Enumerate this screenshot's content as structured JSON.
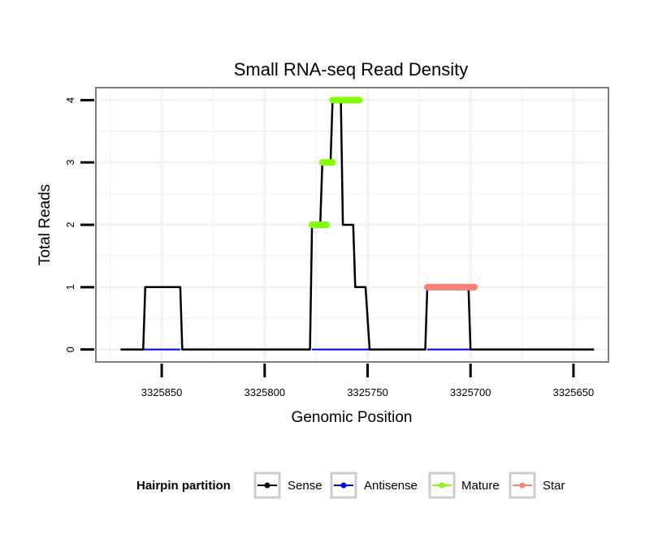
{
  "chart_data": {
    "type": "line",
    "title": "Small RNA-seq Read Density",
    "xlabel": "Genomic Position",
    "ylabel": "Total Reads",
    "x_reversed": true,
    "xlim": [
      3325882,
      3325633
    ],
    "ylim": [
      -0.2,
      4.2
    ],
    "x_ticks": [
      3325850,
      3325800,
      3325750,
      3325700,
      3325650
    ],
    "x_tick_labels": [
      "3325850",
      "3325800",
      "3325750",
      "3325700",
      "3325650"
    ],
    "y_ticks": [
      0,
      1,
      2,
      3,
      4
    ],
    "y_tick_labels": [
      "0",
      "1",
      "2",
      "3",
      "4"
    ],
    "grid": true,
    "legend": {
      "title": "Hairpin partition",
      "position": "bottom",
      "entries": [
        {
          "name": "Sense",
          "color": "#000000"
        },
        {
          "name": "Antisense",
          "color": "#0000ff"
        },
        {
          "name": "Mature",
          "color": "#7fff00"
        },
        {
          "name": "Star",
          "color": "#fa8072"
        }
      ]
    },
    "series": [
      {
        "name": "Sense",
        "color": "#000000",
        "x": [
          3325870,
          3325859,
          3325858,
          3325841,
          3325840,
          3325778,
          3325777,
          3325773,
          3325772,
          3325768,
          3325767,
          3325763,
          3325762,
          3325757,
          3325756,
          3325751,
          3325750,
          3325749,
          3325747,
          3325746,
          3325722,
          3325721,
          3325701,
          3325700,
          3325640
        ],
        "values": [
          0,
          0,
          1,
          1,
          0,
          0,
          2,
          2,
          3,
          3,
          4,
          4,
          2,
          2,
          1,
          1,
          0.5,
          0,
          0,
          0,
          0,
          1,
          1,
          0,
          0
        ]
      },
      {
        "name": "Antisense",
        "color": "#0000ff",
        "segments": [
          [
            3325859,
            3325841
          ],
          [
            3325777,
            3325746
          ],
          [
            3325721,
            3325700
          ]
        ],
        "value": 0
      },
      {
        "name": "Mature",
        "color": "#7fff00",
        "segments": [
          {
            "x": [
              3325777,
              3325770
            ],
            "value": 2
          },
          {
            "x": [
              3325772,
              3325767
            ],
            "value": 3
          },
          {
            "x": [
              3325767,
              3325754
            ],
            "value": 4
          }
        ]
      },
      {
        "name": "Star",
        "color": "#fa8072",
        "segments": [
          {
            "x": [
              3325721,
              3325698
            ],
            "value": 1
          }
        ]
      }
    ]
  },
  "colors": {
    "panel_border": "#7f7f7f",
    "grid": "#f2f2f2",
    "axis_tick": "#000000",
    "legend_key_border": "#cccccc"
  }
}
